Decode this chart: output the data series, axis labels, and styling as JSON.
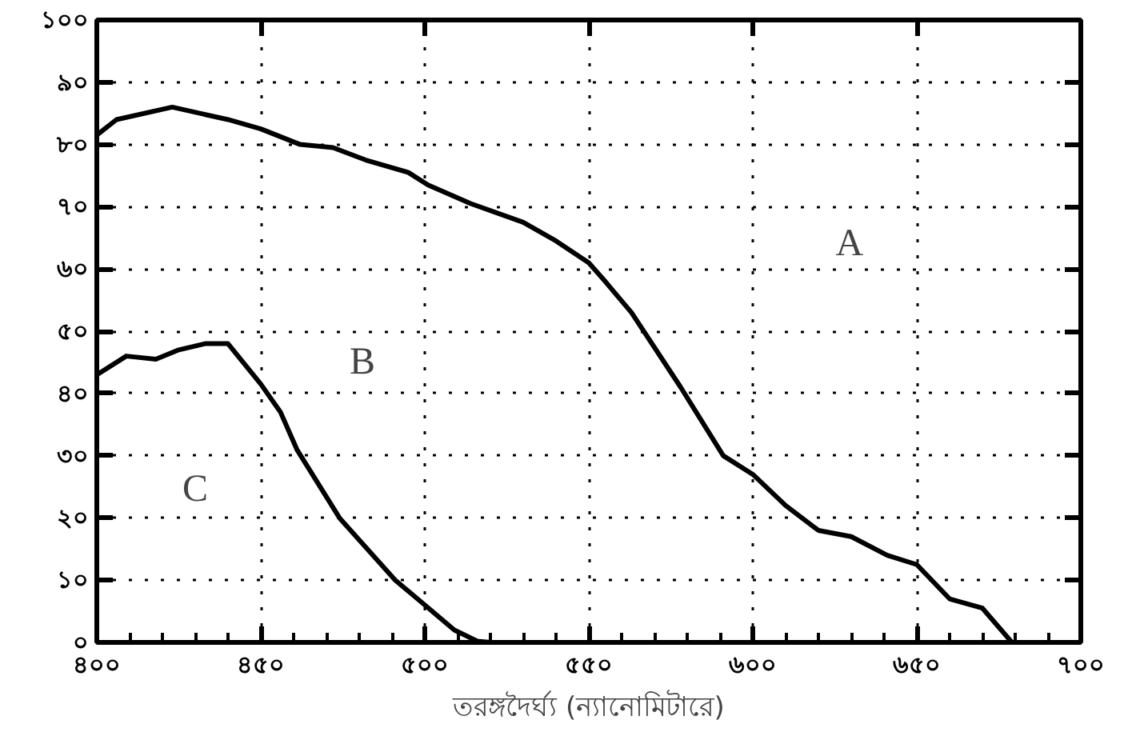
{
  "chart_data": {
    "type": "line",
    "xlabel": "তরঙ্গদৈর্ঘ্য (ন্যানোমিটারে)",
    "xlim": [
      400,
      700
    ],
    "ylim": [
      0,
      100
    ],
    "xticks": [
      {
        "value": 400,
        "label": "৪০০"
      },
      {
        "value": 450,
        "label": "৪৫০"
      },
      {
        "value": 500,
        "label": "৫০০"
      },
      {
        "value": 550,
        "label": "৫৫০"
      },
      {
        "value": 600,
        "label": "৬০০"
      },
      {
        "value": 650,
        "label": "৬৫০"
      },
      {
        "value": 700,
        "label": "৭০০"
      }
    ],
    "yticks": [
      {
        "value": 0,
        "label": "০"
      },
      {
        "value": 10,
        "label": "১০"
      },
      {
        "value": 20,
        "label": "২০"
      },
      {
        "value": 30,
        "label": "৩০"
      },
      {
        "value": 40,
        "label": "৪০"
      },
      {
        "value": 50,
        "label": "৫০"
      },
      {
        "value": 60,
        "label": "৬০"
      },
      {
        "value": 70,
        "label": "৭০"
      },
      {
        "value": 80,
        "label": "৮০"
      },
      {
        "value": 90,
        "label": "৯০"
      },
      {
        "value": 100,
        "label": "১০০"
      }
    ],
    "grid": true,
    "marker": "none",
    "line_style": "solid",
    "series": [
      {
        "color": "#000000",
        "x": [
          400,
          406,
          423,
          440,
          450,
          462,
          472,
          482,
          495,
          501,
          514,
          530,
          540,
          550,
          555,
          563,
          578,
          591,
          600,
          610,
          620,
          630,
          641,
          650,
          660,
          670,
          679
        ],
        "values": [
          81.5,
          84,
          86,
          84,
          82.5,
          80,
          79.5,
          77.5,
          75.5,
          73.5,
          70.5,
          67.5,
          64.5,
          61,
          58,
          53,
          41,
          30,
          27,
          22,
          18,
          17,
          14,
          12.5,
          7,
          5.5,
          0
        ]
      },
      {
        "color": "#000000",
        "x": [
          400,
          409,
          418,
          425,
          433,
          440,
          450,
          456,
          461,
          474,
          491,
          500,
          509,
          516,
          520
        ],
        "values": [
          43,
          46,
          45.5,
          47,
          48,
          48,
          41.5,
          37,
          31,
          20,
          10,
          6,
          2,
          0.2,
          0
        ]
      }
    ],
    "annotations": [
      "A",
      "B",
      "C"
    ]
  }
}
